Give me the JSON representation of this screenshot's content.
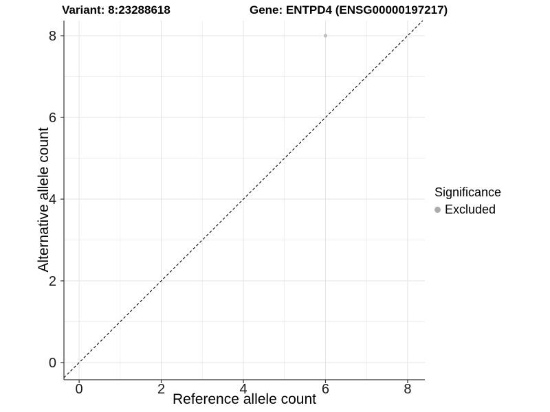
{
  "titles": {
    "variant": "Variant: 8:23288618",
    "gene": "Gene: ENTPD4 (ENSG00000197217)"
  },
  "chart_data": {
    "type": "scatter",
    "xlabel": "Reference allele count",
    "ylabel": "Alternative allele count",
    "points": [
      {
        "x": 6,
        "y": 8,
        "series": "Excluded"
      }
    ],
    "xticks": [
      0,
      2,
      4,
      6,
      8
    ],
    "yticks": [
      0,
      2,
      4,
      6,
      8
    ],
    "xticks_minor": [
      1,
      3,
      5,
      7
    ],
    "yticks_minor": [
      1,
      3,
      5,
      7
    ],
    "xlim": [
      -0.37,
      8.42
    ],
    "ylim": [
      -0.42,
      8.37
    ],
    "grid": "major and minor gridlines on white panel",
    "annotations": [
      {
        "kind": "identity-line",
        "equation": "y = x",
        "style": "dashed"
      }
    ],
    "legend": {
      "title": "Significance",
      "position": "right",
      "items": [
        {
          "label": "Excluded",
          "color": "#acacac"
        }
      ]
    }
  },
  "colors": {
    "background": "#ffffff",
    "point": "#bebebe",
    "legend_dot": "#acacac",
    "grid_major": "#e3e3e3",
    "grid_minor": "#efefef",
    "axis_line": "#333333",
    "tick_mark": "#333333",
    "tick_text": "#1a1a1a",
    "identity_line": "#000000"
  }
}
